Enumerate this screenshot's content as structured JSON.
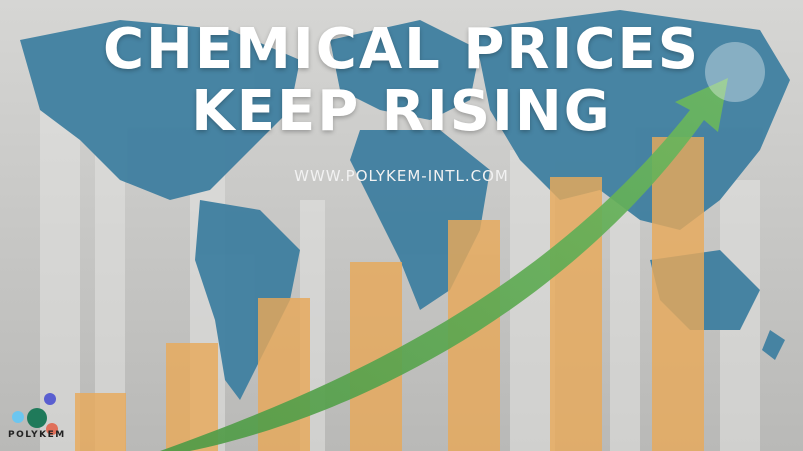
{
  "headline": {
    "line1": "CHEMICAL PRICES",
    "line2": "KEEP RISING"
  },
  "website": "WWW.POLYKEM-INTL.COM",
  "logo": {
    "name": "POLYKEM"
  },
  "colors": {
    "background": "#c9c9c7",
    "map": "#3f7fa0",
    "bars": "#e8a95a",
    "arrow": "#5aa54f"
  },
  "graphic": {
    "bar_count": 7,
    "trend": "rising"
  }
}
